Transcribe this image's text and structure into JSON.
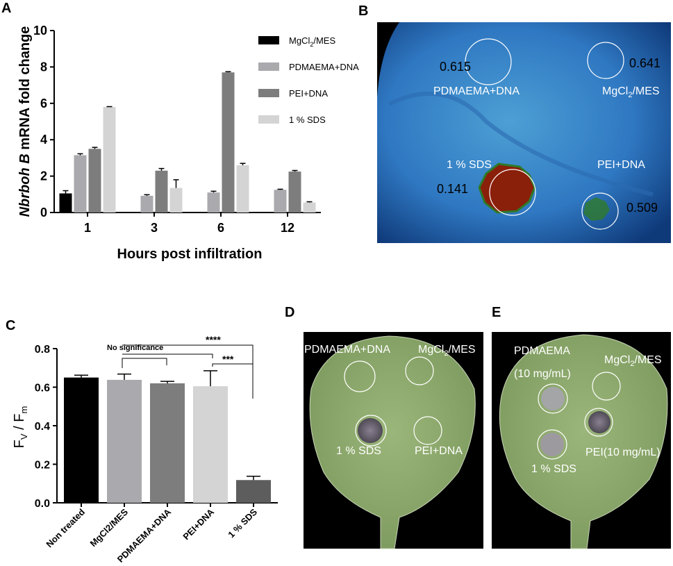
{
  "panels": {
    "a": {
      "letter": "A",
      "chart_data": {
        "type": "bar",
        "ylabel_italic": "Nbrboh B",
        "ylabel_rest": " mRNA fold change",
        "xlabel": "Hours post infiltration",
        "categories": [
          "1",
          "3",
          "6",
          "12"
        ],
        "ylim": [
          0,
          10
        ],
        "yticks": [
          "0",
          "2",
          "4",
          "6",
          "8",
          "10"
        ],
        "series": [
          {
            "name": "MgCl2/MES",
            "name_parts": [
              "MgCl",
              "2",
              "/MES"
            ],
            "color": "#000000",
            "values": [
              1.05,
              null,
              null,
              null
            ],
            "errors": [
              0.15,
              null,
              null,
              null
            ]
          },
          {
            "name": "PDMAEMA+DNA",
            "color": "#a9a9ae",
            "values": [
              3.15,
              0.92,
              1.1,
              1.25
            ],
            "errors": [
              0.08,
              0.06,
              0.07,
              0.03
            ]
          },
          {
            "name": "PEI+DNA",
            "color": "#7d7d7d",
            "values": [
              3.5,
              2.3,
              7.7,
              2.25
            ],
            "errors": [
              0.08,
              0.12,
              0.04,
              0.06
            ]
          },
          {
            "name": "1 % SDS",
            "color": "#d4d4d4",
            "values": [
              5.8,
              1.35,
              2.6,
              0.55
            ],
            "errors": [
              0.02,
              0.45,
              0.1,
              0.04
            ]
          }
        ],
        "grid": false,
        "legend_position": "right"
      }
    },
    "b": {
      "letter": "B",
      "labels": {
        "pdmaema": "PDMAEMA+DNA",
        "mgcl": [
          "MgCl",
          "2",
          "/MES"
        ],
        "sds": "1 % SDS",
        "pei": "PEI+DNA"
      },
      "values": {
        "pdmaema": "0.615",
        "mgcl": "0.641",
        "sds": "0.141",
        "pei": "0.509"
      }
    },
    "c": {
      "letter": "C",
      "chart_data": {
        "type": "bar",
        "ylabel_parts": [
          "F",
          "V",
          " / F",
          "m"
        ],
        "categories": [
          "Non treated",
          "MgCl2/MES",
          "PDMAEMA+DNA",
          "PEI+DNA",
          "1 % SDS"
        ],
        "values": [
          0.65,
          0.638,
          0.62,
          0.605,
          0.118
        ],
        "errors": [
          0.012,
          0.03,
          0.01,
          0.08,
          0.02
        ],
        "colors": [
          "#000000",
          "#a9a9ae",
          "#7d7d7d",
          "#d4d4d4",
          "#5d5d5d"
        ],
        "ylim": [
          0,
          0.8
        ],
        "yticks": [
          "0.0",
          "0.2",
          "0.4",
          "0.6",
          "0.8"
        ],
        "annotations": {
          "no_significance": "No significance",
          "four_star": "****",
          "three_star": "***"
        },
        "grid": false
      }
    },
    "d": {
      "letter": "D",
      "labels": {
        "pdmaema": "PDMAEMA+DNA",
        "mgcl": [
          "MgCl",
          "2",
          "/MES"
        ],
        "sds": "1 % SDS",
        "pei": "PEI+DNA"
      }
    },
    "e": {
      "letter": "E",
      "labels": {
        "pdmaema": "PDMAEMA",
        "pdmaema_conc": "(10 mg/mL)",
        "mgcl": [
          "MgCl",
          "2",
          "/MES"
        ],
        "sds": "1 % SDS",
        "pei": "PEI(10 mg/mL)"
      }
    }
  }
}
